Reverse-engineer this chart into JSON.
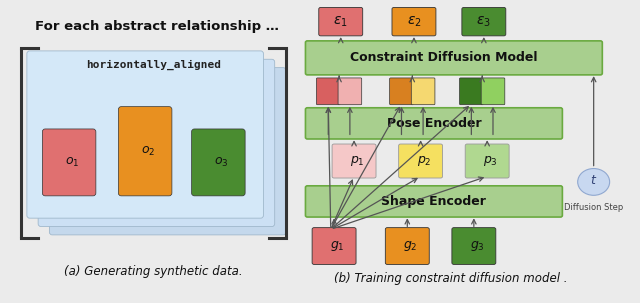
{
  "bg_color": "#ebebeb",
  "title_text": "For each abstract relationship …",
  "label_text": "horizontally_aligned",
  "caption_a": "(a) Generating synthetic data.",
  "caption_b": "(b) Training constraint diffusion model .",
  "obj_colors": [
    "#e07070",
    "#e89020",
    "#4a8c30"
  ],
  "epsilon_colors": [
    "#e07070",
    "#e89020",
    "#4a8c30"
  ],
  "g_colors": [
    "#e07070",
    "#e89020",
    "#4a8c30"
  ],
  "p_colors": [
    "#f5c8c8",
    "#f5e060",
    "#b0d890"
  ],
  "comb_dark": [
    "#d86060",
    "#d88020",
    "#3a7a20"
  ],
  "comb_light": [
    "#f0b0b0",
    "#f5d870",
    "#90d060"
  ],
  "green_bar": "#a8cf8e",
  "green_bar_edge": "#6aaa40",
  "t_circle_color": "#c8d8f0",
  "t_circle_edge": "#90a8d0",
  "arrow_color": "#555555",
  "bracket_color": "#444444",
  "card_colors": [
    "#c4d8ec",
    "#cce0f4",
    "#d4e8f8"
  ],
  "panel_bg": "#ebebeb",
  "white_bg": "#f5f5f5"
}
